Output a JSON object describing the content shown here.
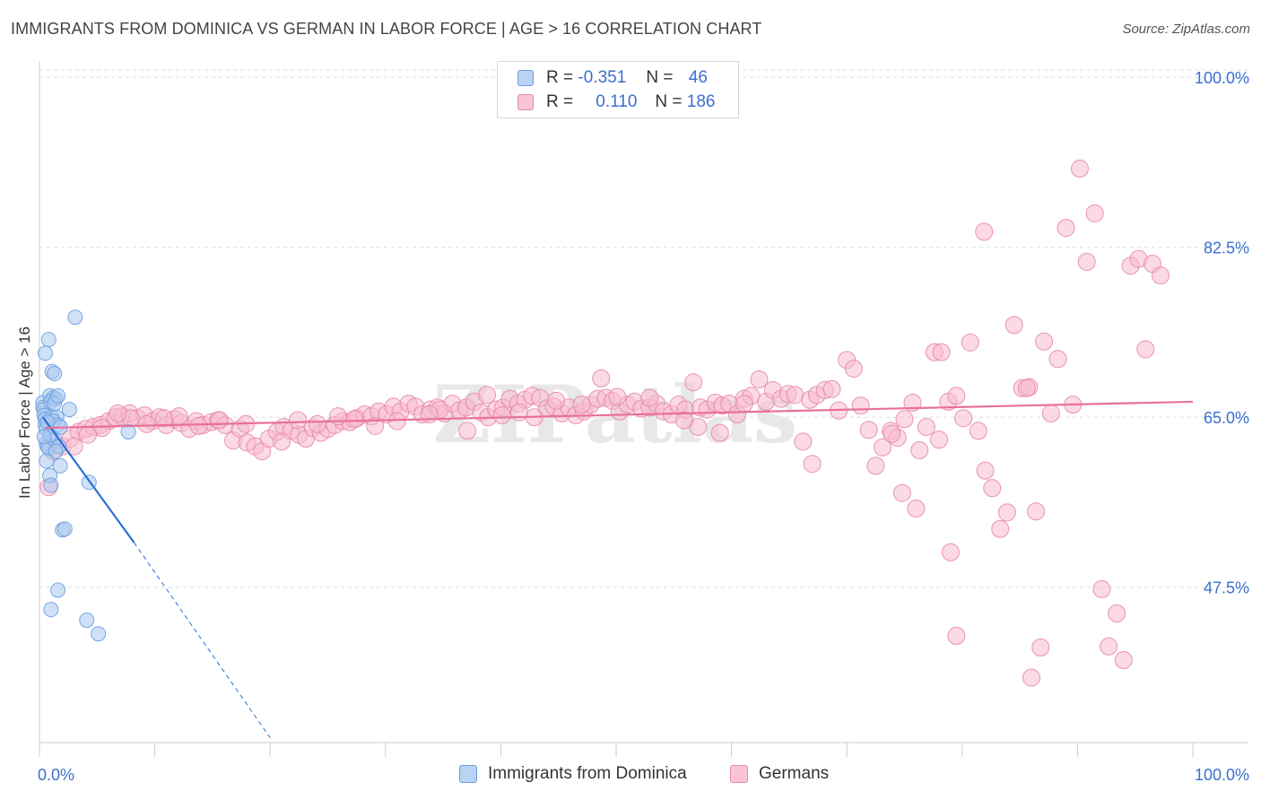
{
  "title": "IMMIGRANTS FROM DOMINICA VS GERMAN IN LABOR FORCE | AGE > 16 CORRELATION CHART",
  "source": "Source: ZipAtlas.com",
  "watermark": "ZIPatlas",
  "legend": {
    "rows": [
      {
        "r_label": "R =",
        "r_value": "-0.351",
        "n_label": "N =",
        "n_value": "46",
        "color": "#b9d3f5",
        "border": "#6b9de0"
      },
      {
        "r_label": "R =",
        "r_value": "0.110",
        "n_label": "N =",
        "n_value": "186",
        "color": "#f9c4d4",
        "border": "#e58aa7"
      }
    ]
  },
  "bottom_legend": [
    {
      "label": "Immigrants from Dominica",
      "color": "#b9d3f5",
      "border": "#6b9de0"
    },
    {
      "label": "Germans",
      "color": "#f9c4d4",
      "border": "#e58aa7"
    }
  ],
  "chart_data": {
    "type": "scatter",
    "xlabel": "",
    "ylabel": "In Labor Force | Age > 16",
    "xlim": [
      0,
      100
    ],
    "ylim": [
      31.5,
      101.5
    ],
    "x_tick_labels": [
      {
        "value": 0,
        "label": "0.0%"
      },
      {
        "value": 100,
        "label": "100.0%"
      }
    ],
    "y_ticks": [
      {
        "value": 100.0,
        "label": "100.0%"
      },
      {
        "value": 82.5,
        "label": "82.5%"
      },
      {
        "value": 65.0,
        "label": "65.0%"
      },
      {
        "value": 47.5,
        "label": "47.5%"
      }
    ],
    "grid": "horizontal dashed",
    "series": [
      {
        "name": "Immigrants from Dominica",
        "color": "#a9c8f0",
        "stroke": "#6b9de0",
        "trend": {
          "x0": 0.3,
          "y0": 65.0,
          "x1": 8.2,
          "y1": 52.1,
          "dash_to_x": 20,
          "dash_to_y": 32.0,
          "color": "#2a6fd6"
        },
        "points": [
          [
            0.3,
            66.5
          ],
          [
            0.3,
            66.0
          ],
          [
            0.4,
            65.8
          ],
          [
            0.4,
            65.2
          ],
          [
            0.5,
            64.8
          ],
          [
            0.5,
            64.2
          ],
          [
            0.6,
            63.8
          ],
          [
            0.6,
            62.3
          ],
          [
            0.7,
            62.0
          ],
          [
            0.8,
            61.8
          ],
          [
            0.9,
            59.0
          ],
          [
            1.0,
            58.0
          ],
          [
            0.5,
            71.6
          ],
          [
            0.8,
            73.0
          ],
          [
            1.1,
            69.7
          ],
          [
            0.9,
            67.2
          ],
          [
            1.2,
            67.0
          ],
          [
            1.4,
            66.9
          ],
          [
            1.0,
            66.6
          ],
          [
            1.3,
            66.4
          ],
          [
            1.1,
            65.0
          ],
          [
            1.5,
            65.0
          ],
          [
            1.2,
            64.6
          ],
          [
            1.6,
            64.2
          ],
          [
            1.0,
            63.0
          ],
          [
            1.3,
            62.7
          ],
          [
            1.7,
            62.0
          ],
          [
            1.8,
            60.0
          ],
          [
            1.6,
            67.2
          ],
          [
            1.3,
            69.5
          ],
          [
            2.0,
            53.4
          ],
          [
            2.2,
            53.5
          ],
          [
            1.6,
            47.2
          ],
          [
            1.0,
            45.2
          ],
          [
            3.1,
            75.3
          ],
          [
            4.1,
            44.1
          ],
          [
            5.1,
            42.7
          ],
          [
            4.3,
            58.3
          ],
          [
            2.6,
            65.8
          ],
          [
            7.7,
            63.5
          ],
          [
            0.7,
            64.5
          ],
          [
            0.9,
            63.2
          ],
          [
            1.4,
            61.5
          ],
          [
            0.6,
            60.5
          ],
          [
            1.8,
            64.0
          ],
          [
            0.4,
            63.0
          ]
        ]
      },
      {
        "name": "Germans",
        "color": "#f7bccd",
        "stroke": "#e58aa7",
        "trend": {
          "x0": 0.5,
          "y0": 63.9,
          "x1": 100,
          "y1": 66.6,
          "color": "#e8709a"
        },
        "points": [
          [
            0.8,
            57.8
          ],
          [
            1.2,
            61.5
          ],
          [
            2.0,
            62.0
          ],
          [
            2.7,
            62.8
          ],
          [
            3.4,
            63.5
          ],
          [
            4.0,
            63.8
          ],
          [
            4.7,
            64.0
          ],
          [
            5.3,
            64.2
          ],
          [
            6.0,
            64.6
          ],
          [
            6.6,
            65.0
          ],
          [
            7.2,
            65.1
          ],
          [
            7.8,
            65.4
          ],
          [
            8.5,
            64.9
          ],
          [
            9.1,
            65.2
          ],
          [
            9.8,
            64.6
          ],
          [
            10.4,
            65.0
          ],
          [
            11.0,
            64.2
          ],
          [
            11.7,
            64.8
          ],
          [
            12.3,
            64.4
          ],
          [
            13.0,
            63.8
          ],
          [
            13.6,
            64.6
          ],
          [
            14.2,
            64.2
          ],
          [
            14.9,
            64.5
          ],
          [
            15.5,
            64.7
          ],
          [
            16.1,
            64.2
          ],
          [
            16.8,
            62.6
          ],
          [
            17.4,
            63.8
          ],
          [
            18.0,
            62.4
          ],
          [
            18.7,
            62.0
          ],
          [
            19.3,
            61.5
          ],
          [
            19.9,
            62.8
          ],
          [
            20.6,
            63.5
          ],
          [
            21.2,
            64.0
          ],
          [
            21.8,
            63.6
          ],
          [
            22.5,
            63.2
          ],
          [
            23.1,
            62.8
          ],
          [
            23.7,
            63.9
          ],
          [
            24.4,
            63.4
          ],
          [
            25.0,
            63.8
          ],
          [
            25.6,
            64.2
          ],
          [
            26.3,
            64.6
          ],
          [
            26.9,
            64.5
          ],
          [
            27.5,
            64.9
          ],
          [
            28.2,
            65.3
          ],
          [
            28.8,
            65.1
          ],
          [
            29.4,
            65.6
          ],
          [
            30.1,
            65.3
          ],
          [
            30.7,
            66.1
          ],
          [
            31.3,
            65.6
          ],
          [
            32.0,
            66.4
          ],
          [
            32.6,
            66.1
          ],
          [
            33.2,
            65.3
          ],
          [
            33.9,
            65.8
          ],
          [
            34.5,
            66.0
          ],
          [
            35.1,
            65.4
          ],
          [
            35.8,
            66.4
          ],
          [
            36.4,
            65.7
          ],
          [
            37.0,
            66.0
          ],
          [
            37.7,
            66.6
          ],
          [
            38.3,
            65.5
          ],
          [
            38.9,
            65.0
          ],
          [
            39.6,
            65.8
          ],
          [
            40.2,
            66.0
          ],
          [
            40.8,
            66.9
          ],
          [
            41.5,
            66.4
          ],
          [
            42.1,
            66.8
          ],
          [
            42.7,
            67.2
          ],
          [
            43.4,
            67.0
          ],
          [
            44.0,
            65.9
          ],
          [
            44.6,
            66.1
          ],
          [
            45.3,
            65.4
          ],
          [
            45.9,
            66.0
          ],
          [
            46.5,
            65.2
          ],
          [
            47.2,
            65.6
          ],
          [
            47.8,
            66.3
          ],
          [
            48.4,
            66.9
          ],
          [
            49.1,
            67.0
          ],
          [
            49.7,
            66.7
          ],
          [
            50.3,
            65.6
          ],
          [
            51.0,
            66.3
          ],
          [
            51.6,
            66.6
          ],
          [
            52.2,
            65.9
          ],
          [
            52.9,
            66.0
          ],
          [
            53.5,
            66.4
          ],
          [
            54.1,
            65.6
          ],
          [
            54.8,
            65.3
          ],
          [
            55.4,
            66.3
          ],
          [
            56.0,
            65.8
          ],
          [
            56.7,
            68.6
          ],
          [
            57.3,
            66.0
          ],
          [
            57.9,
            65.8
          ],
          [
            58.6,
            66.5
          ],
          [
            59.2,
            66.2
          ],
          [
            59.8,
            66.4
          ],
          [
            60.5,
            65.3
          ],
          [
            61.1,
            66.9
          ],
          [
            61.7,
            67.2
          ],
          [
            62.4,
            68.9
          ],
          [
            63.0,
            66.6
          ],
          [
            63.6,
            67.8
          ],
          [
            64.3,
            66.9
          ],
          [
            64.9,
            67.4
          ],
          [
            65.5,
            67.3
          ],
          [
            66.2,
            62.5
          ],
          [
            66.8,
            66.8
          ],
          [
            67.4,
            67.3
          ],
          [
            68.1,
            67.8
          ],
          [
            68.7,
            67.9
          ],
          [
            69.3,
            65.7
          ],
          [
            70.0,
            70.9
          ],
          [
            70.6,
            70.0
          ],
          [
            71.2,
            66.2
          ],
          [
            71.9,
            63.7
          ],
          [
            72.5,
            60.0
          ],
          [
            73.1,
            61.9
          ],
          [
            73.8,
            63.6
          ],
          [
            74.4,
            62.9
          ],
          [
            75.0,
            64.8
          ],
          [
            75.7,
            66.5
          ],
          [
            76.3,
            61.6
          ],
          [
            76.9,
            64.0
          ],
          [
            77.6,
            71.7
          ],
          [
            78.2,
            71.7
          ],
          [
            78.8,
            66.6
          ],
          [
            79.5,
            67.2
          ],
          [
            80.1,
            64.9
          ],
          [
            80.7,
            72.7
          ],
          [
            81.4,
            63.6
          ],
          [
            82.0,
            59.5
          ],
          [
            82.6,
            57.7
          ],
          [
            83.3,
            53.5
          ],
          [
            83.9,
            55.2
          ],
          [
            84.5,
            74.5
          ],
          [
            85.2,
            68.0
          ],
          [
            85.8,
            68.1
          ],
          [
            86.4,
            55.3
          ],
          [
            87.1,
            72.8
          ],
          [
            87.7,
            65.4
          ],
          [
            88.3,
            71.0
          ],
          [
            89.0,
            84.5
          ],
          [
            89.6,
            66.3
          ],
          [
            90.2,
            90.6
          ],
          [
            90.8,
            81.0
          ],
          [
            91.5,
            86.0
          ],
          [
            92.1,
            47.3
          ],
          [
            92.7,
            41.4
          ],
          [
            93.4,
            44.8
          ],
          [
            94.0,
            40.0
          ],
          [
            94.6,
            80.6
          ],
          [
            95.3,
            81.3
          ],
          [
            95.9,
            72.0
          ],
          [
            96.5,
            80.8
          ],
          [
            97.2,
            79.6
          ],
          [
            81.9,
            84.1
          ],
          [
            85.6,
            68.0
          ],
          [
            86.0,
            38.2
          ],
          [
            86.8,
            41.3
          ],
          [
            79.5,
            42.5
          ],
          [
            79.0,
            51.1
          ],
          [
            78.0,
            62.7
          ],
          [
            76.0,
            55.6
          ],
          [
            74.8,
            57.2
          ],
          [
            73.9,
            63.3
          ],
          [
            67.0,
            60.2
          ],
          [
            61.1,
            66.4
          ],
          [
            59.0,
            63.4
          ],
          [
            57.1,
            64.0
          ],
          [
            55.9,
            64.7
          ],
          [
            52.9,
            67.0
          ],
          [
            50.1,
            67.1
          ],
          [
            48.7,
            69.0
          ],
          [
            47.0,
            66.3
          ],
          [
            44.8,
            66.7
          ],
          [
            42.9,
            65.0
          ],
          [
            41.6,
            65.5
          ],
          [
            40.1,
            65.2
          ],
          [
            38.8,
            67.3
          ],
          [
            37.1,
            63.6
          ],
          [
            34.7,
            65.8
          ],
          [
            33.8,
            65.3
          ],
          [
            31.0,
            64.6
          ],
          [
            29.1,
            64.1
          ],
          [
            27.3,
            64.8
          ],
          [
            25.9,
            65.1
          ],
          [
            24.1,
            64.3
          ],
          [
            22.4,
            64.7
          ],
          [
            21.0,
            62.5
          ],
          [
            17.9,
            64.3
          ],
          [
            15.6,
            64.7
          ],
          [
            13.8,
            64.1
          ],
          [
            12.1,
            65.1
          ],
          [
            10.8,
            64.9
          ],
          [
            9.3,
            64.3
          ],
          [
            7.9,
            64.9
          ],
          [
            6.8,
            65.4
          ],
          [
            5.4,
            63.9
          ],
          [
            4.2,
            63.2
          ],
          [
            3.0,
            62.0
          ]
        ]
      }
    ]
  }
}
